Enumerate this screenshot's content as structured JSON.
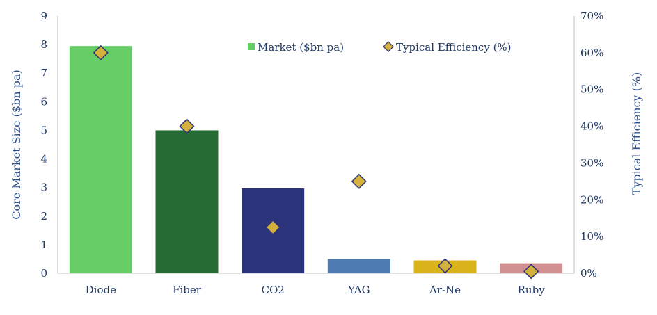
{
  "chart_data": {
    "type": "bar",
    "categories": [
      "Diode",
      "Fiber",
      "CO2",
      "YAG",
      "Ar-Ne",
      "Ruby"
    ],
    "series": [
      {
        "name": "Market ($bn pa)",
        "axis": "left",
        "values": [
          7.95,
          5.0,
          2.97,
          0.5,
          0.45,
          0.35
        ],
        "colors": [
          "#66cc66",
          "#266b34",
          "#2b347a",
          "#4f7bb3",
          "#d9b31a",
          "#d19193"
        ]
      },
      {
        "name": "Typical Efficiency (%)",
        "axis": "right",
        "type": "scatter",
        "marker": "diamond",
        "values": [
          60,
          40,
          12.5,
          25,
          2,
          0.5
        ],
        "color": "#d4b03c"
      }
    ],
    "ylabel": "Core Market Size ($bn pa)",
    "y2label": "Typical Efficiency (%)",
    "ylim": [
      0,
      9
    ],
    "y2lim": [
      0,
      70
    ],
    "yticks": [
      "0",
      "1",
      "2",
      "3",
      "4",
      "5",
      "6",
      "7",
      "8",
      "9"
    ],
    "y2ticks": [
      "0%",
      "10%",
      "20%",
      "30%",
      "40%",
      "50%",
      "60%",
      "70%"
    ],
    "legend_position": "top-right",
    "grid": false
  }
}
